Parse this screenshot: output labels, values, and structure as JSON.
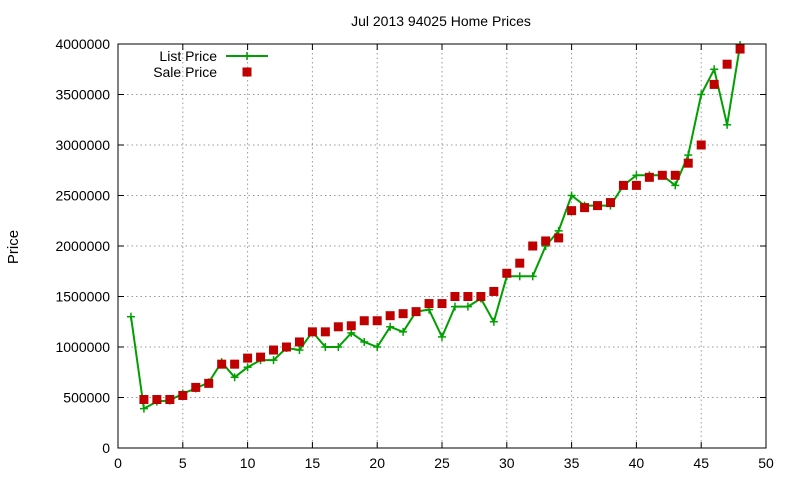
{
  "chart_data": {
    "type": "line",
    "title": "Jul 2013 94025 Home Prices",
    "xlabel": "",
    "ylabel": "Price",
    "xlim": [
      0,
      50
    ],
    "ylim": [
      0,
      4000000
    ],
    "xticks": [
      "0",
      "5",
      "10",
      "15",
      "20",
      "25",
      "30",
      "35",
      "40",
      "45",
      "50"
    ],
    "yticks": [
      "0",
      "500000",
      "1000000",
      "1500000",
      "2000000",
      "2500000",
      "3000000",
      "3500000",
      "4000000"
    ],
    "grid": true,
    "legend_position": "top-left",
    "series": [
      {
        "name": "List Price",
        "style": "line+cross",
        "color": "#00a000",
        "x": [
          1,
          2,
          3,
          4,
          5,
          6,
          7,
          8,
          9,
          10,
          11,
          12,
          13,
          14,
          15,
          16,
          17,
          18,
          19,
          20,
          21,
          22,
          23,
          24,
          25,
          26,
          27,
          28,
          29,
          30,
          31,
          32,
          33,
          34,
          35,
          36,
          37,
          38,
          39,
          40,
          41,
          42,
          43,
          44,
          45,
          46,
          47,
          48
        ],
        "y": [
          1300000,
          390000,
          460000,
          470000,
          540000,
          590000,
          650000,
          850000,
          700000,
          800000,
          870000,
          870000,
          990000,
          970000,
          1150000,
          1000000,
          1000000,
          1140000,
          1050000,
          1000000,
          1200000,
          1150000,
          1350000,
          1370000,
          1100000,
          1400000,
          1400000,
          1480000,
          1250000,
          1700000,
          1700000,
          1700000,
          2000000,
          2150000,
          2500000,
          2400000,
          2400000,
          2400000,
          2600000,
          2700000,
          2700000,
          2700000,
          2600000,
          2900000,
          3500000,
          3750000,
          3200000,
          3990000
        ]
      },
      {
        "name": "Sale Price",
        "style": "square",
        "color": "#c00000",
        "x": [
          2,
          3,
          4,
          5,
          6,
          7,
          8,
          9,
          10,
          11,
          12,
          13,
          14,
          15,
          16,
          17,
          18,
          19,
          20,
          21,
          22,
          23,
          24,
          25,
          26,
          27,
          28,
          29,
          30,
          31,
          32,
          33,
          34,
          35,
          36,
          37,
          38,
          39,
          40,
          41,
          42,
          43,
          44,
          45,
          46,
          47,
          48
        ],
        "y": [
          480000,
          480000,
          480000,
          520000,
          600000,
          640000,
          830000,
          830000,
          890000,
          900000,
          970000,
          1000000,
          1050000,
          1150000,
          1150000,
          1200000,
          1210000,
          1260000,
          1260000,
          1310000,
          1330000,
          1350000,
          1430000,
          1430000,
          1500000,
          1500000,
          1500000,
          1550000,
          1730000,
          1830000,
          2000000,
          2050000,
          2080000,
          2350000,
          2380000,
          2400000,
          2430000,
          2600000,
          2600000,
          2680000,
          2700000,
          2700000,
          2820000,
          3000000,
          3600000,
          3800000,
          3950000
        ]
      }
    ]
  }
}
